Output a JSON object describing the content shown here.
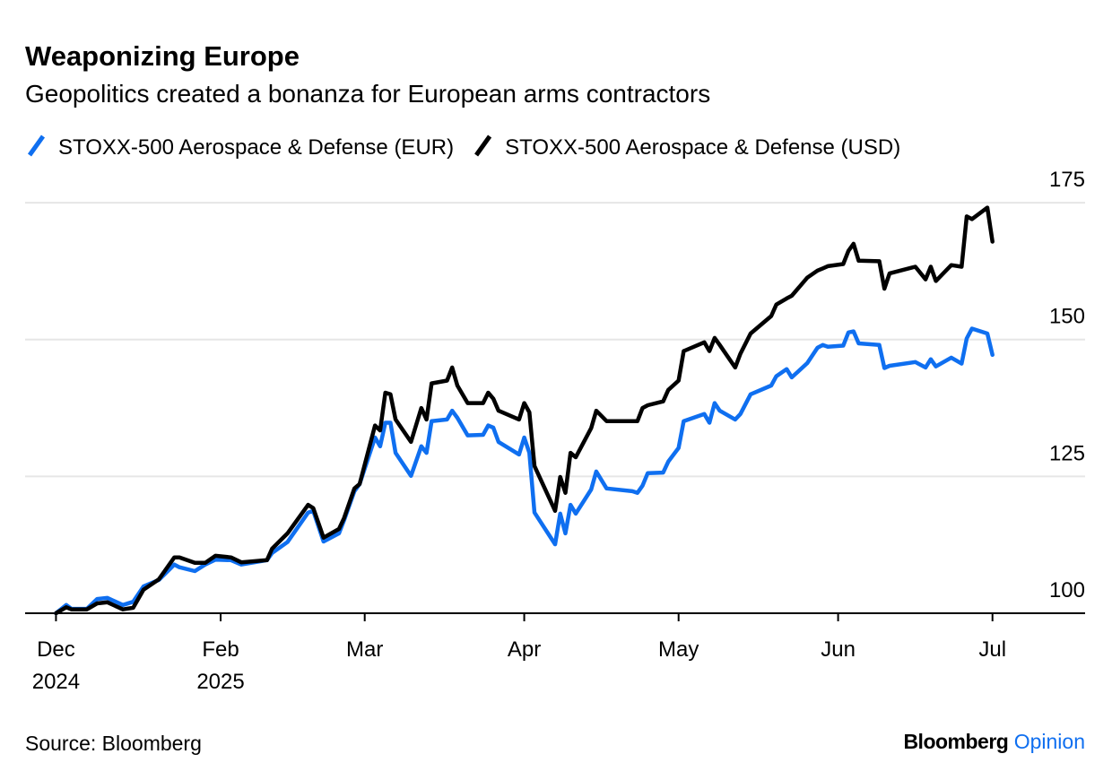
{
  "chart_data": {
    "type": "line",
    "title": "Weaponizing Europe",
    "subtitle": "Geopolitics created a bonanza for European arms contractors",
    "source": "Source: Bloomberg",
    "brand": [
      "Bloomberg",
      "Opinion"
    ],
    "legend": "top-left",
    "grid": true,
    "x": [
      "2024-12-31",
      "2025-01-02",
      "2025-01-03",
      "2025-01-06",
      "2025-01-08",
      "2025-01-10",
      "2025-01-13",
      "2025-01-15",
      "2025-01-17",
      "2025-01-20",
      "2025-01-23",
      "2025-01-24",
      "2025-01-27",
      "2025-01-29",
      "2025-01-31",
      "2025-02-03",
      "2025-02-05",
      "2025-02-10",
      "2025-02-11",
      "2025-02-14",
      "2025-02-18",
      "2025-02-19",
      "2025-02-21",
      "2025-02-24",
      "2025-02-25",
      "2025-02-27",
      "2025-02-28",
      "2025-03-03",
      "2025-03-04",
      "2025-03-05",
      "2025-03-06",
      "2025-03-07",
      "2025-03-10",
      "2025-03-12",
      "2025-03-13",
      "2025-03-14",
      "2025-03-17",
      "2025-03-18",
      "2025-03-19",
      "2025-03-21",
      "2025-03-24",
      "2025-03-25",
      "2025-03-26",
      "2025-03-27",
      "2025-03-31",
      "2025-04-01",
      "2025-04-02",
      "2025-04-03",
      "2025-04-07",
      "2025-04-08",
      "2025-04-09",
      "2025-04-10",
      "2025-04-11",
      "2025-04-14",
      "2025-04-15",
      "2025-04-17",
      "2025-04-22",
      "2025-04-23",
      "2025-04-24",
      "2025-04-25",
      "2025-04-28",
      "2025-04-29",
      "2025-05-01",
      "2025-05-02",
      "2025-05-06",
      "2025-05-07",
      "2025-05-08",
      "2025-05-09",
      "2025-05-12",
      "2025-05-13",
      "2025-05-15",
      "2025-05-19",
      "2025-05-20",
      "2025-05-22",
      "2025-05-23",
      "2025-05-26",
      "2025-05-28",
      "2025-05-29",
      "2025-05-30",
      "2025-06-02",
      "2025-06-03",
      "2025-06-04",
      "2025-06-05",
      "2025-06-09",
      "2025-06-10",
      "2025-06-11",
      "2025-06-16",
      "2025-06-18",
      "2025-06-19",
      "2025-06-20",
      "2025-06-23",
      "2025-06-25",
      "2025-06-26",
      "2025-06-27",
      "2025-06-30",
      "2025-07-01"
    ],
    "series": [
      {
        "name": "STOXX-500 Aerospace & Defense (EUR)",
        "color": "#0f6ff0",
        "values": [
          100.0,
          101.5,
          100.8,
          100.8,
          102.6,
          102.8,
          101.5,
          102.1,
          104.9,
          106.1,
          108.9,
          108.4,
          107.7,
          108.9,
          109.8,
          109.7,
          108.9,
          109.7,
          111.0,
          113.0,
          118.4,
          118.7,
          113.1,
          114.6,
          117.0,
          122.3,
          123.6,
          132.1,
          130.5,
          134.8,
          134.8,
          129.3,
          125.1,
          130.5,
          129.3,
          135.1,
          135.4,
          137.0,
          135.7,
          132.5,
          132.6,
          134.3,
          133.9,
          131.3,
          129.0,
          132.1,
          129.3,
          118.4,
          112.6,
          118.2,
          114.6,
          119.8,
          118.2,
          122.6,
          125.9,
          122.8,
          122.3,
          122.0,
          123.3,
          125.6,
          125.7,
          127.7,
          130.2,
          135.1,
          136.4,
          134.8,
          138.4,
          137.0,
          135.4,
          136.4,
          140.0,
          141.6,
          143.3,
          144.6,
          143.1,
          145.7,
          148.5,
          149.0,
          148.7,
          148.9,
          151.3,
          151.5,
          149.3,
          149.0,
          144.8,
          145.2,
          145.9,
          144.9,
          146.4,
          145.1,
          146.7,
          145.6,
          150.2,
          152.0,
          151.1,
          147.2
        ]
      },
      {
        "name": "STOXX-500 Aerospace & Defense (USD)",
        "color": "#000000",
        "values": [
          100.0,
          101.1,
          100.7,
          100.7,
          101.8,
          102.0,
          100.7,
          101.0,
          104.3,
          106.2,
          110.2,
          110.2,
          109.2,
          109.2,
          110.5,
          110.2,
          109.3,
          109.7,
          111.8,
          114.6,
          119.8,
          119.2,
          113.8,
          115.4,
          117.4,
          122.8,
          123.6,
          134.3,
          133.4,
          140.3,
          140.0,
          135.4,
          131.3,
          137.5,
          135.4,
          142.0,
          142.5,
          144.9,
          141.6,
          138.4,
          138.4,
          140.3,
          139.2,
          137.0,
          135.4,
          138.4,
          136.7,
          126.9,
          118.7,
          124.9,
          122.0,
          129.3,
          128.5,
          133.8,
          137.0,
          135.1,
          135.1,
          135.1,
          137.5,
          138.0,
          138.7,
          140.8,
          142.5,
          147.9,
          149.5,
          147.9,
          150.3,
          149.0,
          144.9,
          147.4,
          151.1,
          154.3,
          156.4,
          157.5,
          158.0,
          161.3,
          162.6,
          163.0,
          163.4,
          163.8,
          166.2,
          167.5,
          164.4,
          164.3,
          159.3,
          162.1,
          163.3,
          161.0,
          163.3,
          160.7,
          163.6,
          163.3,
          172.5,
          172.0,
          174.1,
          167.9
        ]
      }
    ],
    "xlim": [
      "2024-12-25",
      "2025-07-19"
    ],
    "xticks": [
      {
        "value": "2024-12-31",
        "label": [
          "Dec",
          "2024"
        ]
      },
      {
        "value": "2025-02-01",
        "label": [
          "Feb",
          "2025"
        ]
      },
      {
        "value": "2025-03-01",
        "label": [
          "Mar"
        ]
      },
      {
        "value": "2025-04-01",
        "label": [
          "Apr"
        ]
      },
      {
        "value": "2025-05-01",
        "label": [
          "May"
        ]
      },
      {
        "value": "2025-06-01",
        "label": [
          "Jun"
        ]
      },
      {
        "value": "2025-07-01",
        "label": [
          "Jul"
        ]
      }
    ],
    "ylim": [
      100,
      176
    ],
    "yticks": [
      100,
      125,
      150,
      175
    ]
  }
}
